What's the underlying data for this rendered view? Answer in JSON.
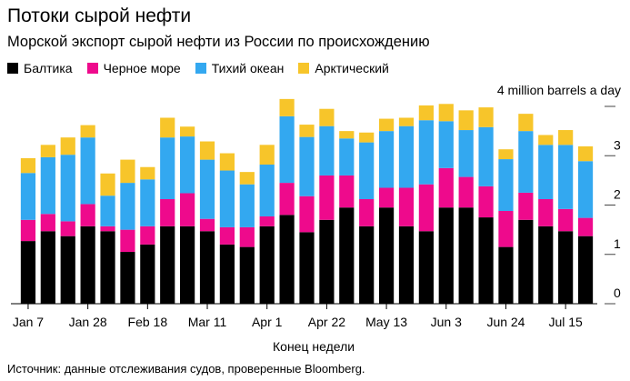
{
  "title": "Потоки сырой нефти",
  "subtitle": "Морской экспорт сырой нефти из России по происхождению",
  "legend": [
    {
      "label": "Балтика",
      "color": "#000000"
    },
    {
      "label": "Черное море",
      "color": "#ee0a8c"
    },
    {
      "label": "Тихий океан",
      "color": "#33a8f0"
    },
    {
      "label": "Арктический",
      "color": "#f7c52a"
    }
  ],
  "unit_label": "4 million barrels a day",
  "source": "Источник: данные отслеживания судов, проверенные Bloomberg.",
  "chart_data": {
    "type": "bar",
    "stacked": true,
    "title": "Потоки сырой нефти",
    "xlabel": "Конец недели",
    "ylabel": "4 million barrels a day",
    "ylim": [
      0,
      4
    ],
    "yticks": [
      0,
      1,
      2,
      3,
      4
    ],
    "ytick_labels": [
      "0",
      "1",
      "2",
      "3",
      ""
    ],
    "x_tick_labels": [
      "Jan 7",
      "Jan 28",
      "Feb 18",
      "Mar 11",
      "Apr 1",
      "Apr 22",
      "May 13",
      "Jun 3",
      "Jun 24",
      "Jul 15"
    ],
    "x_tick_every": 3,
    "categories": [
      "Jan 7",
      "Jan 14",
      "Jan 21",
      "Jan 28",
      "Feb 4",
      "Feb 11",
      "Feb 18",
      "Feb 25",
      "Mar 4",
      "Mar 11",
      "Mar 18",
      "Mar 25",
      "Apr 1",
      "Apr 8",
      "Apr 15",
      "Apr 22",
      "Apr 29",
      "May 6",
      "May 13",
      "May 20",
      "May 27",
      "Jun 3",
      "Jun 10",
      "Jun 17",
      "Jun 24",
      "Jul 1",
      "Jul 8",
      "Jul 15",
      "Jul 22"
    ],
    "series": [
      {
        "name": "Балтика",
        "color": "#000000",
        "values": [
          1.27,
          1.47,
          1.37,
          1.57,
          1.47,
          1.05,
          1.2,
          1.57,
          1.57,
          1.47,
          1.2,
          1.15,
          1.57,
          1.8,
          1.45,
          1.7,
          1.95,
          1.57,
          1.95,
          1.57,
          1.47,
          1.95,
          1.95,
          1.75,
          1.15,
          1.7,
          1.57,
          1.47,
          1.37
        ]
      },
      {
        "name": "Черное море",
        "color": "#ee0a8c",
        "values": [
          0.43,
          0.35,
          0.3,
          0.45,
          0.1,
          0.45,
          0.37,
          0.55,
          0.67,
          0.25,
          0.35,
          0.4,
          0.2,
          0.65,
          0.73,
          0.9,
          0.65,
          0.55,
          0.4,
          0.78,
          0.95,
          0.8,
          0.62,
          0.63,
          0.73,
          0.55,
          0.55,
          0.45,
          0.37
        ]
      },
      {
        "name": "Тихий океан",
        "color": "#33a8f0",
        "values": [
          0.95,
          1.15,
          1.35,
          1.35,
          0.62,
          0.95,
          0.95,
          1.25,
          1.15,
          1.2,
          1.15,
          0.87,
          1.05,
          1.35,
          1.2,
          1.0,
          0.75,
          1.15,
          1.15,
          1.25,
          1.3,
          0.95,
          0.95,
          1.2,
          1.05,
          1.25,
          1.1,
          1.3,
          1.15
        ]
      },
      {
        "name": "Арктический",
        "color": "#f7c52a",
        "values": [
          0.3,
          0.25,
          0.35,
          0.25,
          0.45,
          0.47,
          0.25,
          0.4,
          0.2,
          0.37,
          0.35,
          0.25,
          0.4,
          0.35,
          0.25,
          0.35,
          0.15,
          0.2,
          0.25,
          0.17,
          0.3,
          0.35,
          0.4,
          0.4,
          0.2,
          0.35,
          0.2,
          0.3,
          0.3
        ]
      }
    ]
  }
}
